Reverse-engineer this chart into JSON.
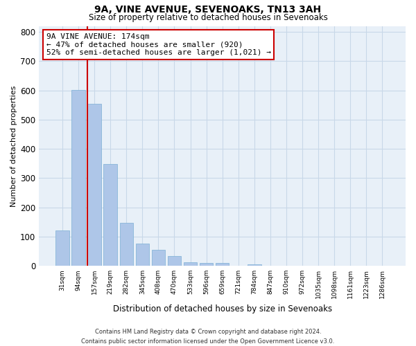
{
  "title1": "9A, VINE AVENUE, SEVENOAKS, TN13 3AH",
  "title2": "Size of property relative to detached houses in Sevenoaks",
  "xlabel": "Distribution of detached houses by size in Sevenoaks",
  "ylabel": "Number of detached properties",
  "categories": [
    "31sqm",
    "94sqm",
    "157sqm",
    "219sqm",
    "282sqm",
    "345sqm",
    "408sqm",
    "470sqm",
    "533sqm",
    "596sqm",
    "659sqm",
    "721sqm",
    "784sqm",
    "847sqm",
    "910sqm",
    "972sqm",
    "1035sqm",
    "1098sqm",
    "1161sqm",
    "1223sqm",
    "1286sqm"
  ],
  "values": [
    122,
    601,
    553,
    348,
    148,
    75,
    56,
    33,
    13,
    11,
    10,
    0,
    5,
    0,
    0,
    0,
    0,
    0,
    0,
    0,
    0
  ],
  "bar_color": "#aec6e8",
  "bar_edge_color": "#7bafd4",
  "red_line_idx": 2,
  "annotation_line1": "9A VINE AVENUE: 174sqm",
  "annotation_line2": "← 47% of detached houses are smaller (920)",
  "annotation_line3": "52% of semi-detached houses are larger (1,021) →",
  "annotation_box_color": "#ffffff",
  "annotation_box_edge": "#cc0000",
  "ylim": [
    0,
    820
  ],
  "yticks": [
    0,
    100,
    200,
    300,
    400,
    500,
    600,
    700,
    800
  ],
  "grid_color": "#c8d8e8",
  "bg_color": "#e8f0f8",
  "footnote1": "Contains HM Land Registry data © Crown copyright and database right 2024.",
  "footnote2": "Contains public sector information licensed under the Open Government Licence v3.0."
}
